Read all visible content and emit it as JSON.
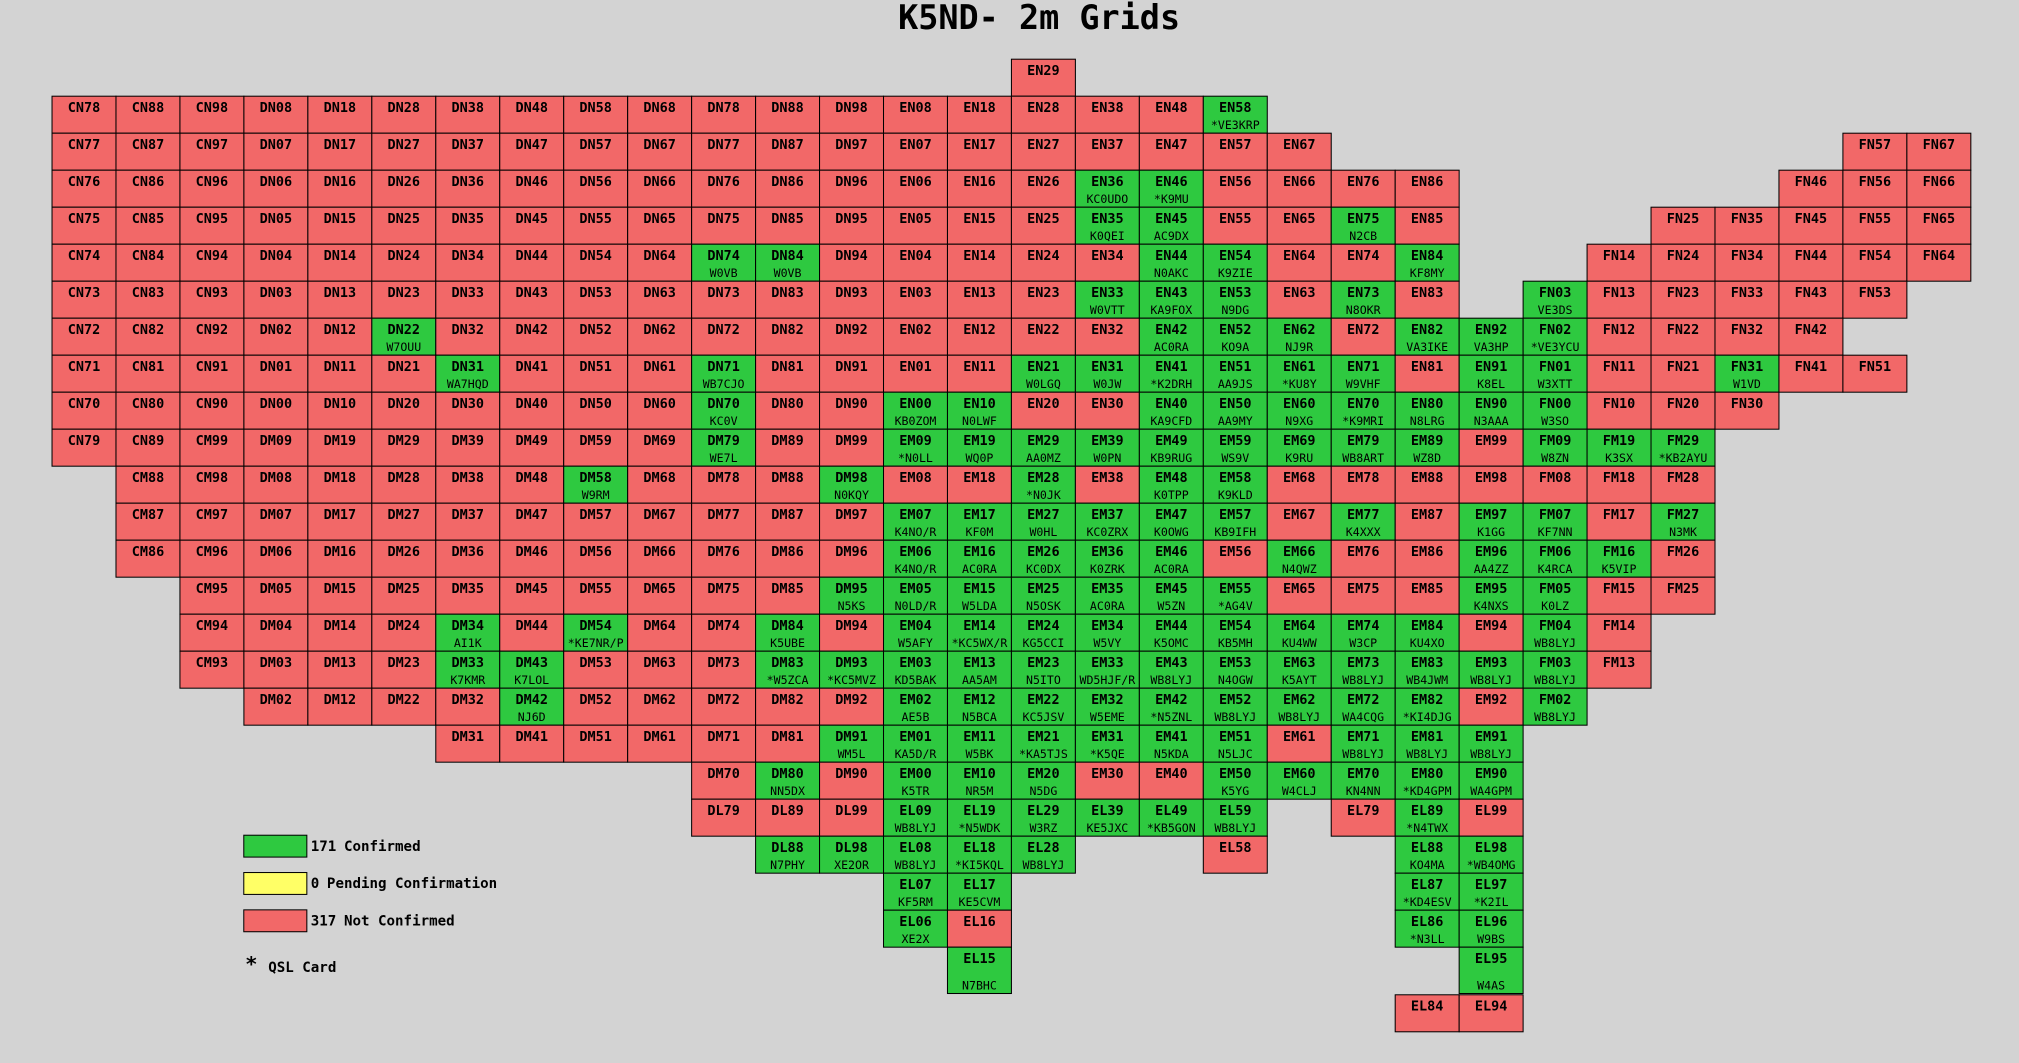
{
  "title": "K5ND- 2m Grids",
  "legend": [
    {
      "count": 171,
      "label": "Confirmed",
      "color": "#2ec940"
    },
    {
      "count": 0,
      "label": "Pending Confirmation",
      "color": "#ffff66"
    },
    {
      "count": 317,
      "label": "Not Confirmed",
      "color": "#f26868"
    }
  ],
  "qsl": {
    "symbol": "*",
    "label": "QSL Card"
  },
  "rows": [
    [
      [
        "EN29"
      ]
    ],
    [
      [
        "CN78"
      ],
      [
        "CN88"
      ],
      [
        "CN98"
      ],
      [
        "DN08"
      ],
      [
        "DN18"
      ],
      [
        "DN28"
      ],
      [
        "DN38"
      ],
      [
        "DN48"
      ],
      [
        "DN58"
      ],
      [
        "DN68"
      ],
      [
        "DN78"
      ],
      [
        "DN88"
      ],
      [
        "DN98"
      ],
      [
        "EN08"
      ],
      [
        "EN18"
      ],
      [
        "EN28"
      ],
      [
        "EN38"
      ],
      [
        "EN48"
      ],
      [
        "EN58",
        "*VE3KRP"
      ]
    ],
    [
      [
        "CN77"
      ],
      [
        "CN87"
      ],
      [
        "CN97"
      ],
      [
        "DN07"
      ],
      [
        "DN17"
      ],
      [
        "DN27"
      ],
      [
        "DN37"
      ],
      [
        "DN47"
      ],
      [
        "DN57"
      ],
      [
        "DN67"
      ],
      [
        "DN77"
      ],
      [
        "DN87"
      ],
      [
        "DN97"
      ],
      [
        "EN07"
      ],
      [
        "EN17"
      ],
      [
        "EN27"
      ],
      [
        "EN37"
      ],
      [
        "EN47"
      ],
      [
        "EN57"
      ],
      [
        "EN67"
      ],
      [
        "FN57"
      ],
      [
        "FN67"
      ]
    ],
    [
      [
        "CN76"
      ],
      [
        "CN86"
      ],
      [
        "CN96"
      ],
      [
        "DN06"
      ],
      [
        "DN16"
      ],
      [
        "DN26"
      ],
      [
        "DN36"
      ],
      [
        "DN46"
      ],
      [
        "DN56"
      ],
      [
        "DN66"
      ],
      [
        "DN76"
      ],
      [
        "DN86"
      ],
      [
        "DN96"
      ],
      [
        "EN06"
      ],
      [
        "EN16"
      ],
      [
        "EN26"
      ],
      [
        "EN36",
        "KC0UDO"
      ],
      [
        "EN46",
        "*K9MU"
      ],
      [
        "EN56"
      ],
      [
        "EN66"
      ],
      [
        "EN76"
      ],
      [
        "EN86"
      ],
      [
        "FN46"
      ],
      [
        "FN56"
      ],
      [
        "FN66"
      ]
    ],
    [
      [
        "CN75"
      ],
      [
        "CN85"
      ],
      [
        "CN95"
      ],
      [
        "DN05"
      ],
      [
        "DN15"
      ],
      [
        "DN25"
      ],
      [
        "DN35"
      ],
      [
        "DN45"
      ],
      [
        "DN55"
      ],
      [
        "DN65"
      ],
      [
        "DN75"
      ],
      [
        "DN85"
      ],
      [
        "DN95"
      ],
      [
        "EN05"
      ],
      [
        "EN15"
      ],
      [
        "EN25"
      ],
      [
        "EN35",
        "K0QEI"
      ],
      [
        "EN45",
        "AC9DX"
      ],
      [
        "EN55"
      ],
      [
        "EN65"
      ],
      [
        "EN75",
        "N2CB"
      ],
      [
        "EN85"
      ],
      [
        "FN25"
      ],
      [
        "FN35"
      ],
      [
        "FN45"
      ],
      [
        "FN55"
      ],
      [
        "FN65"
      ]
    ],
    [
      [
        "CN74"
      ],
      [
        "CN84"
      ],
      [
        "CN94"
      ],
      [
        "DN04"
      ],
      [
        "DN14"
      ],
      [
        "DN24"
      ],
      [
        "DN34"
      ],
      [
        "DN44"
      ],
      [
        "DN54"
      ],
      [
        "DN64"
      ],
      [
        "DN74",
        "W0VB"
      ],
      [
        "DN84",
        "W0VB"
      ],
      [
        "DN94"
      ],
      [
        "EN04"
      ],
      [
        "EN14"
      ],
      [
        "EN24"
      ],
      [
        "EN34"
      ],
      [
        "EN44",
        "N0AKC"
      ],
      [
        "EN54",
        "K9ZIE"
      ],
      [
        "EN64"
      ],
      [
        "EN74"
      ],
      [
        "EN84",
        "KF8MY"
      ],
      [
        "FN14"
      ],
      [
        "FN24"
      ],
      [
        "FN34"
      ],
      [
        "FN44"
      ],
      [
        "FN54"
      ],
      [
        "FN64"
      ]
    ],
    [
      [
        "CN73"
      ],
      [
        "CN83"
      ],
      [
        "CN93"
      ],
      [
        "DN03"
      ],
      [
        "DN13"
      ],
      [
        "DN23"
      ],
      [
        "DN33"
      ],
      [
        "DN43"
      ],
      [
        "DN53"
      ],
      [
        "DN63"
      ],
      [
        "DN73"
      ],
      [
        "DN83"
      ],
      [
        "DN93"
      ],
      [
        "EN03"
      ],
      [
        "EN13"
      ],
      [
        "EN23"
      ],
      [
        "EN33",
        "W0VTT"
      ],
      [
        "EN43",
        "KA9FOX"
      ],
      [
        "EN53",
        "N9DG"
      ],
      [
        "EN63"
      ],
      [
        "EN73",
        "N8OKR"
      ],
      [
        "EN83"
      ],
      [
        "FN03",
        "VE3DS"
      ],
      [
        "FN13"
      ],
      [
        "FN23"
      ],
      [
        "FN33"
      ],
      [
        "FN43"
      ],
      [
        "FN53"
      ]
    ],
    [
      [
        "CN72"
      ],
      [
        "CN82"
      ],
      [
        "CN92"
      ],
      [
        "DN02"
      ],
      [
        "DN12"
      ],
      [
        "DN22",
        "W7OUU"
      ],
      [
        "DN32"
      ],
      [
        "DN42"
      ],
      [
        "DN52"
      ],
      [
        "DN62"
      ],
      [
        "DN72"
      ],
      [
        "DN82"
      ],
      [
        "DN92"
      ],
      [
        "EN02"
      ],
      [
        "EN12"
      ],
      [
        "EN22"
      ],
      [
        "EN32"
      ],
      [
        "EN42",
        "AC0RA"
      ],
      [
        "EN52",
        "KO9A"
      ],
      [
        "EN62",
        "NJ9R"
      ],
      [
        "EN72"
      ],
      [
        "EN82",
        "VA3IKE"
      ],
      [
        "EN92",
        "VA3HP"
      ],
      [
        "FN02",
        "*VE3YCU"
      ],
      [
        "FN12"
      ],
      [
        "FN22"
      ],
      [
        "FN32"
      ],
      [
        "FN42"
      ]
    ],
    [
      [
        "CN71"
      ],
      [
        "CN81"
      ],
      [
        "CN91"
      ],
      [
        "DN01"
      ],
      [
        "DN11"
      ],
      [
        "DN21"
      ],
      [
        "DN31",
        "WA7HQD"
      ],
      [
        "DN41"
      ],
      [
        "DN51"
      ],
      [
        "DN61"
      ],
      [
        "DN71",
        "WB7CJO"
      ],
      [
        "DN81"
      ],
      [
        "DN91"
      ],
      [
        "EN01"
      ],
      [
        "EN11"
      ],
      [
        "EN21",
        "W0LGQ"
      ],
      [
        "EN31",
        "W0JW"
      ],
      [
        "EN41",
        "*K2DRH"
      ],
      [
        "EN51",
        "AA9JS"
      ],
      [
        "EN61",
        "*KU8Y"
      ],
      [
        "EN71",
        "W9VHF"
      ],
      [
        "EN81"
      ],
      [
        "EN91",
        "K8EL"
      ],
      [
        "FN01",
        "W3XTT"
      ],
      [
        "FN11"
      ],
      [
        "FN21"
      ],
      [
        "FN31",
        "W1VD"
      ],
      [
        "FN41"
      ],
      [
        "FN51"
      ]
    ],
    [
      [
        "CN70"
      ],
      [
        "CN80"
      ],
      [
        "CN90"
      ],
      [
        "DN00"
      ],
      [
        "DN10"
      ],
      [
        "DN20"
      ],
      [
        "DN30"
      ],
      [
        "DN40"
      ],
      [
        "DN50"
      ],
      [
        "DN60"
      ],
      [
        "DN70",
        "KC0V"
      ],
      [
        "DN80"
      ],
      [
        "DN90"
      ],
      [
        "EN00",
        "KB0ZOM"
      ],
      [
        "EN10",
        "N0LWF"
      ],
      [
        "EN20"
      ],
      [
        "EN30"
      ],
      [
        "EN40",
        "KA9CFD"
      ],
      [
        "EN50",
        "AA9MY"
      ],
      [
        "EN60",
        "N9XG"
      ],
      [
        "EN70",
        "*K9MRI"
      ],
      [
        "EN80",
        "N8LRG"
      ],
      [
        "EN90",
        "N3AAA"
      ],
      [
        "FN00",
        "W3SO"
      ],
      [
        "FN10"
      ],
      [
        "FN20"
      ],
      [
        "FN30"
      ]
    ],
    [
      [
        "CN79"
      ],
      [
        "CN89"
      ],
      [
        "CM99"
      ],
      [
        "DM09"
      ],
      [
        "DM19"
      ],
      [
        "DM29"
      ],
      [
        "DM39"
      ],
      [
        "DM49"
      ],
      [
        "DM59"
      ],
      [
        "DM69"
      ],
      [
        "DM79",
        "WE7L"
      ],
      [
        "DM89"
      ],
      [
        "DM99"
      ],
      [
        "EM09",
        "*N0LL"
      ],
      [
        "EM19",
        "WQ0P"
      ],
      [
        "EM29",
        "AA0MZ"
      ],
      [
        "EM39",
        "W0PN"
      ],
      [
        "EM49",
        "KB9RUG"
      ],
      [
        "EM59",
        "WS9V"
      ],
      [
        "EM69",
        "K9RU"
      ],
      [
        "EM79",
        "WB8ART"
      ],
      [
        "EM89",
        "WZ8D"
      ],
      [
        "EM99"
      ],
      [
        "FM09",
        "W8ZN"
      ],
      [
        "FM19",
        "K3SX"
      ],
      [
        "FM29",
        "*KB2AYU"
      ]
    ],
    [
      [
        "CM88"
      ],
      [
        "CM98"
      ],
      [
        "DM08"
      ],
      [
        "DM18"
      ],
      [
        "DM28"
      ],
      [
        "DM38"
      ],
      [
        "DM48"
      ],
      [
        "DM58",
        "W9RM"
      ],
      [
        "DM68"
      ],
      [
        "DM78"
      ],
      [
        "DM88"
      ],
      [
        "DM98",
        "N0KQY"
      ],
      [
        "EM08"
      ],
      [
        "EM18"
      ],
      [
        "EM28",
        "*N0JK"
      ],
      [
        "EM38"
      ],
      [
        "EM48",
        "K0TPP"
      ],
      [
        "EM58",
        "K9KLD"
      ],
      [
        "EM68"
      ],
      [
        "EM78"
      ],
      [
        "EM88"
      ],
      [
        "EM98"
      ],
      [
        "FM08"
      ],
      [
        "FM18"
      ],
      [
        "FM28"
      ]
    ],
    [
      [
        "CM87"
      ],
      [
        "CM97"
      ],
      [
        "DM07"
      ],
      [
        "DM17"
      ],
      [
        "DM27"
      ],
      [
        "DM37"
      ],
      [
        "DM47"
      ],
      [
        "DM57"
      ],
      [
        "DM67"
      ],
      [
        "DM77"
      ],
      [
        "DM87"
      ],
      [
        "DM97"
      ],
      [
        "EM07",
        "K4NO/R"
      ],
      [
        "EM17",
        "KF0M"
      ],
      [
        "EM27",
        "W0HL"
      ],
      [
        "EM37",
        "KC0ZRX"
      ],
      [
        "EM47",
        "K0OWG"
      ],
      [
        "EM57",
        "KB9IFH"
      ],
      [
        "EM67"
      ],
      [
        "EM77",
        "K4XXX"
      ],
      [
        "EM87"
      ],
      [
        "EM97",
        "K1GG"
      ],
      [
        "FM07",
        "KF7NN"
      ],
      [
        "FM17"
      ],
      [
        "FM27",
        "N3MK"
      ]
    ],
    [
      [
        "CM86"
      ],
      [
        "CM96"
      ],
      [
        "DM06"
      ],
      [
        "DM16"
      ],
      [
        "DM26"
      ],
      [
        "DM36"
      ],
      [
        "DM46"
      ],
      [
        "DM56"
      ],
      [
        "DM66"
      ],
      [
        "DM76"
      ],
      [
        "DM86"
      ],
      [
        "DM96"
      ],
      [
        "EM06",
        "K4NO/R"
      ],
      [
        "EM16",
        "AC0RA"
      ],
      [
        "EM26",
        "KC0DX"
      ],
      [
        "EM36",
        "K0ZRK"
      ],
      [
        "EM46",
        "AC0RA"
      ],
      [
        "EM56"
      ],
      [
        "EM66",
        "N4QWZ"
      ],
      [
        "EM76"
      ],
      [
        "EM86"
      ],
      [
        "EM96",
        "AA4ZZ"
      ],
      [
        "FM06",
        "K4RCA"
      ],
      [
        "FM16",
        "K5VIP"
      ],
      [
        "FM26"
      ]
    ],
    [
      [
        "CM95"
      ],
      [
        "DM05"
      ],
      [
        "DM15"
      ],
      [
        "DM25"
      ],
      [
        "DM35"
      ],
      [
        "DM45"
      ],
      [
        "DM55"
      ],
      [
        "DM65"
      ],
      [
        "DM75"
      ],
      [
        "DM85"
      ],
      [
        "DM95",
        "N5KS"
      ],
      [
        "EM05",
        "N0LD/R"
      ],
      [
        "EM15",
        "W5LDA"
      ],
      [
        "EM25",
        "N5OSK"
      ],
      [
        "EM35",
        "AC0RA"
      ],
      [
        "EM45",
        "W5ZN"
      ],
      [
        "EM55",
        "*AG4V"
      ],
      [
        "EM65"
      ],
      [
        "EM75"
      ],
      [
        "EM85"
      ],
      [
        "EM95",
        "K4NXS"
      ],
      [
        "FM05",
        "K0LZ"
      ],
      [
        "FM15"
      ],
      [
        "FM25"
      ]
    ],
    [
      [
        "CM94"
      ],
      [
        "DM04"
      ],
      [
        "DM14"
      ],
      [
        "DM24"
      ],
      [
        "DM34",
        "AI1K"
      ],
      [
        "DM44"
      ],
      [
        "DM54",
        "*KE7NR/P"
      ],
      [
        "DM64"
      ],
      [
        "DM74"
      ],
      [
        "DM84",
        "K5UBE"
      ],
      [
        "DM94"
      ],
      [
        "EM04",
        "W5AFY"
      ],
      [
        "EM14",
        "*KC5WX/R"
      ],
      [
        "EM24",
        "KG5CCI"
      ],
      [
        "EM34",
        "W5VY"
      ],
      [
        "EM44",
        "K5OMC"
      ],
      [
        "EM54",
        "KB5MH"
      ],
      [
        "EM64",
        "KU4WW"
      ],
      [
        "EM74",
        "W3CP"
      ],
      [
        "EM84",
        "KU4XO"
      ],
      [
        "EM94"
      ],
      [
        "FM04",
        "WB8LYJ"
      ],
      [
        "FM14"
      ]
    ],
    [
      [
        "CM93"
      ],
      [
        "DM03"
      ],
      [
        "DM13"
      ],
      [
        "DM23"
      ],
      [
        "DM33",
        "K7KMR"
      ],
      [
        "DM43",
        "K7LOL"
      ],
      [
        "DM53"
      ],
      [
        "DM63"
      ],
      [
        "DM73"
      ],
      [
        "DM83",
        "*W5ZCA"
      ],
      [
        "DM93",
        "*KC5MVZ"
      ],
      [
        "EM03",
        "KD5BAK"
      ],
      [
        "EM13",
        "AA5AM"
      ],
      [
        "EM23",
        "N5ITO"
      ],
      [
        "EM33",
        "WD5HJF/R"
      ],
      [
        "EM43",
        "WB8LYJ"
      ],
      [
        "EM53",
        "N4OGW"
      ],
      [
        "EM63",
        "K5AYT"
      ],
      [
        "EM73",
        "WB8LYJ"
      ],
      [
        "EM83",
        "WB4JWM"
      ],
      [
        "EM93",
        "WB8LYJ"
      ],
      [
        "FM03",
        "WB8LYJ"
      ],
      [
        "FM13"
      ]
    ],
    [
      [
        "DM02"
      ],
      [
        "DM12"
      ],
      [
        "DM22"
      ],
      [
        "DM32"
      ],
      [
        "DM42",
        "NJ6D"
      ],
      [
        "DM52"
      ],
      [
        "DM62"
      ],
      [
        "DM72"
      ],
      [
        "DM82"
      ],
      [
        "DM92"
      ],
      [
        "EM02",
        "AE5B"
      ],
      [
        "EM12",
        "N5BCA"
      ],
      [
        "EM22",
        "KC5JSV"
      ],
      [
        "EM32",
        "W5EME"
      ],
      [
        "EM42",
        "*N5ZNL"
      ],
      [
        "EM52",
        "WB8LYJ"
      ],
      [
        "EM62",
        "WB8LYJ"
      ],
      [
        "EM72",
        "WA4CQG"
      ],
      [
        "EM82",
        "*KI4DJG"
      ],
      [
        "EM92"
      ],
      [
        "FM02",
        "WB8LYJ"
      ]
    ],
    [
      [
        "DM31"
      ],
      [
        "DM41"
      ],
      [
        "DM51"
      ],
      [
        "DM61"
      ],
      [
        "DM71"
      ],
      [
        "DM81"
      ],
      [
        "DM91",
        "WM5L"
      ],
      [
        "EM01",
        "KA5D/R"
      ],
      [
        "EM11",
        "W5BK"
      ],
      [
        "EM21",
        "*KA5TJS"
      ],
      [
        "EM31",
        "*K5QE"
      ],
      [
        "EM41",
        "N5KDA"
      ],
      [
        "EM51",
        "N5LJC"
      ],
      [
        "EM61"
      ],
      [
        "EM71",
        "WB8LYJ"
      ],
      [
        "EM81",
        "WB8LYJ"
      ],
      [
        "EM91",
        "WB8LYJ"
      ]
    ],
    [
      [
        "DM70"
      ],
      [
        "DM80",
        "NN5DX"
      ],
      [
        "DM90"
      ],
      [
        "EM00",
        "K5TR"
      ],
      [
        "EM10",
        "NR5M"
      ],
      [
        "EM20",
        "N5DG"
      ],
      [
        "EM30"
      ],
      [
        "EM40"
      ],
      [
        "EM50",
        "K5YG"
      ],
      [
        "EM60",
        "W4CLJ"
      ],
      [
        "EM70",
        "KN4NN"
      ],
      [
        "EM80",
        "*KD4GPM"
      ],
      [
        "EM90",
        "WA4GPM"
      ]
    ],
    [
      [
        "DL79"
      ],
      [
        "DL89"
      ],
      [
        "DL99"
      ],
      [
        "EL09",
        "WB8LYJ"
      ],
      [
        "EL19",
        "*N5WDK"
      ],
      [
        "EL29",
        "W3RZ"
      ],
      [
        "EL39",
        "KE5JXC"
      ],
      [
        "EL49",
        "*KB5GON"
      ],
      [
        "EL59",
        "WB8LYJ"
      ],
      [
        "EL79"
      ],
      [
        "EL89",
        "*N4TWX"
      ],
      [
        "EL99"
      ]
    ],
    [
      [
        "DL88",
        "N7PHY"
      ],
      [
        "DL98",
        "XE2OR"
      ],
      [
        "EL08",
        "WB8LYJ"
      ],
      [
        "EL18",
        "*KI5KQL"
      ],
      [
        "EL28",
        "WB8LYJ"
      ],
      [
        "EL58"
      ],
      [
        "EL88",
        "KO4MA"
      ],
      [
        "EL98",
        "*WB4OMG"
      ]
    ],
    [
      [
        "EL07",
        "KF5RM"
      ],
      [
        "EL17",
        "KE5CVM"
      ],
      [
        "EL87",
        "*KD4ESV"
      ],
      [
        "EL97",
        "*K2IL"
      ]
    ],
    [
      [
        "EL06",
        "XE2X"
      ],
      [
        "EL16"
      ],
      [
        "EL86",
        "*N3LL"
      ],
      [
        "EL96",
        "W9BS"
      ]
    ],
    [
      [
        "EL15",
        "N7BHC"
      ],
      [
        "EL95",
        "W4AS"
      ]
    ],
    [
      [
        "EL84"
      ],
      [
        "EL94"
      ]
    ]
  ]
}
